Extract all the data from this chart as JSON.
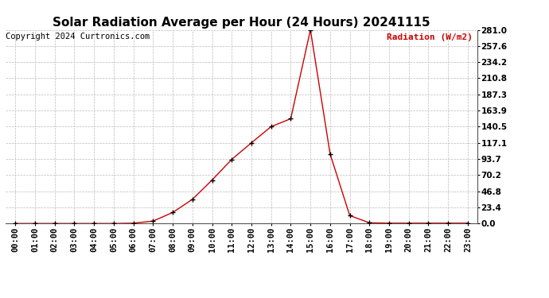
{
  "title": "Solar Radiation Average per Hour (24 Hours) 20241115",
  "copyright_text": "Copyright 2024 Curtronics.com",
  "legend_label": "Radiation (W/m2)",
  "hours": [
    "00:00",
    "01:00",
    "02:00",
    "03:00",
    "04:00",
    "05:00",
    "06:00",
    "07:00",
    "08:00",
    "09:00",
    "10:00",
    "11:00",
    "12:00",
    "13:00",
    "14:00",
    "15:00",
    "16:00",
    "17:00",
    "18:00",
    "19:00",
    "20:00",
    "21:00",
    "22:00",
    "23:00"
  ],
  "values": [
    0.0,
    0.0,
    0.0,
    0.0,
    0.0,
    0.0,
    0.5,
    3.5,
    16.0,
    35.0,
    63.0,
    93.0,
    117.0,
    140.5,
    152.0,
    281.0,
    101.0,
    11.5,
    1.0,
    0.5,
    0.5,
    0.5,
    0.5,
    0.5
  ],
  "line_color": "#cc0000",
  "marker_color": "#000000",
  "grid_color": "#bbbbbb",
  "bg_color": "#ffffff",
  "title_fontsize": 11,
  "tick_fontsize": 7.5,
  "copyright_fontsize": 7.5,
  "legend_fontsize": 8,
  "yticks": [
    0.0,
    23.4,
    46.8,
    70.2,
    93.7,
    117.1,
    140.5,
    163.9,
    187.3,
    210.8,
    234.2,
    257.6,
    281.0
  ],
  "ymax": 281.0,
  "ymin": 0.0
}
